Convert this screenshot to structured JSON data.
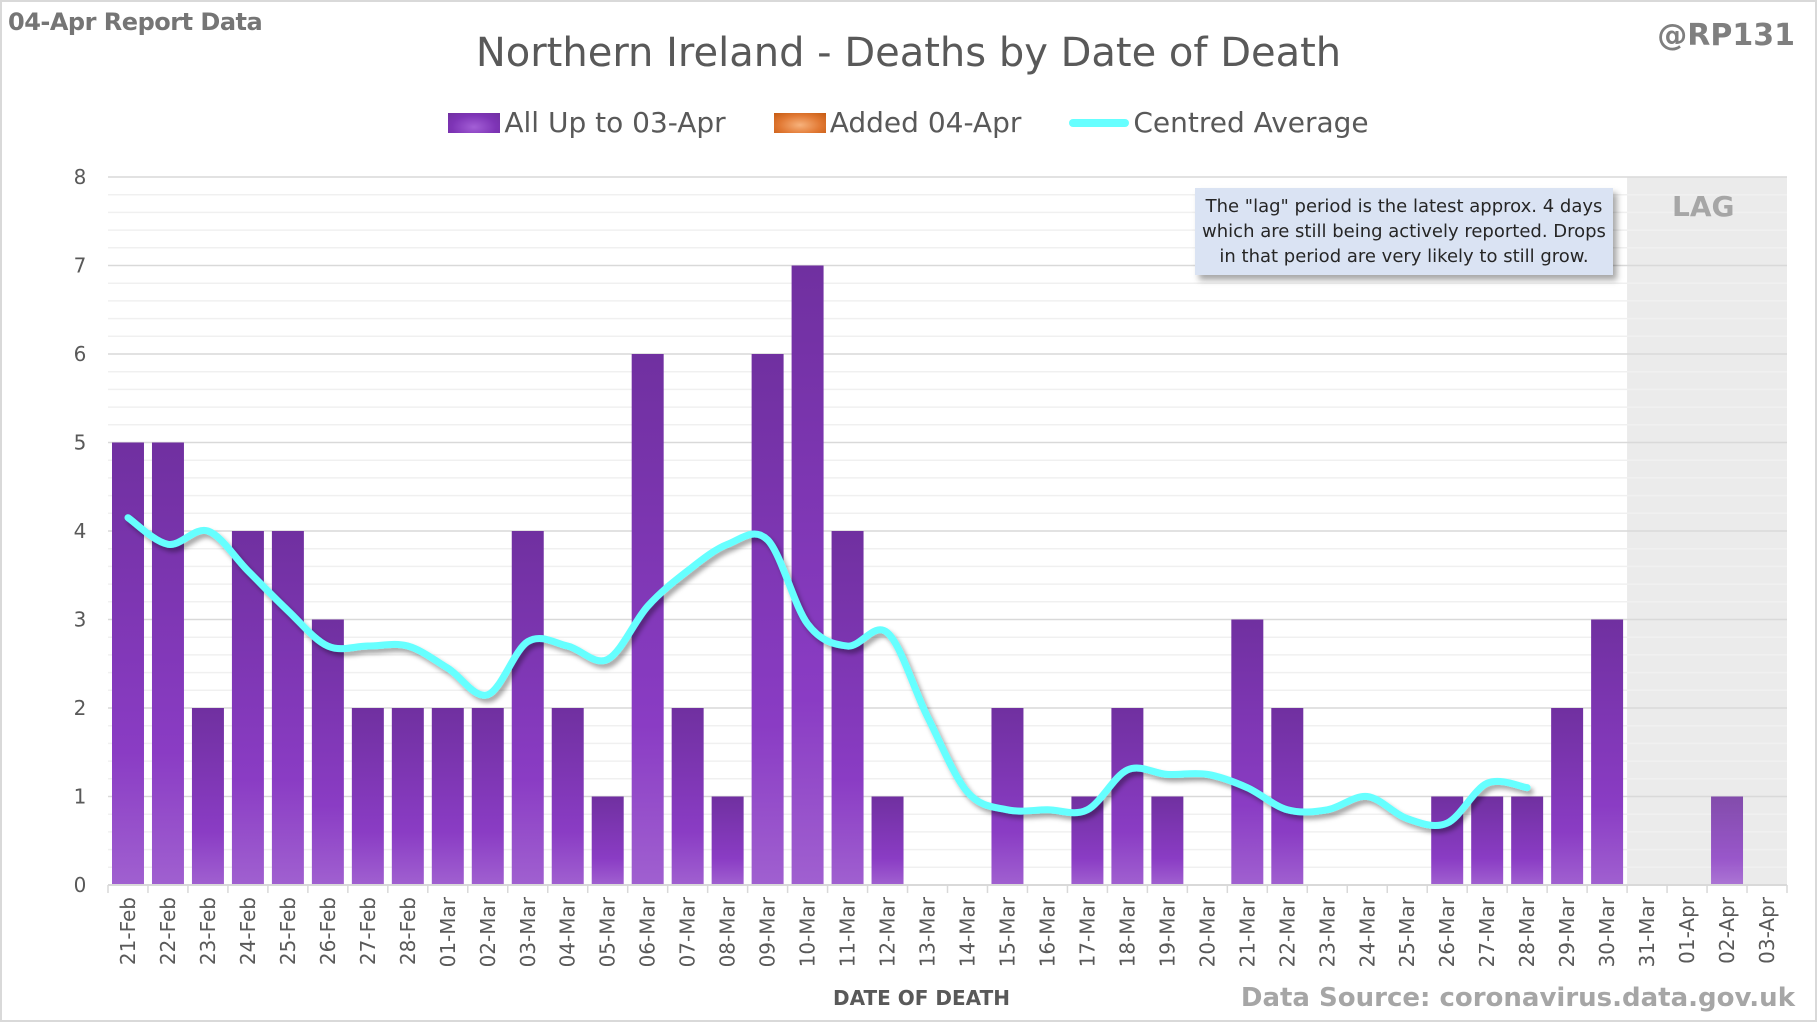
{
  "header": {
    "report_label": "04-Apr Report Data",
    "handle": "@RP131"
  },
  "colors": {
    "bars_main": "#7e34b6",
    "bars_added": "#e27a35",
    "average_line": "#66ffff",
    "lag_shade": "#ebebeb",
    "gridline_major": "#d9d9d9",
    "gridline_minor": "#f0f0f0"
  },
  "annotation": {
    "lines": [
      "The \"lag\" period is the latest approx. 4 days",
      "which are still being actively reported.  Drops",
      "in that period are very likely to still grow."
    ],
    "lag_label": "LAG"
  },
  "footer": {
    "source": "Data Source: coronavirus.data.gov.uk"
  },
  "chart_data": {
    "type": "bar",
    "title": "Northern Ireland - Deaths by Date of Death",
    "xlabel": "DATE OF DEATH",
    "ylabel": "",
    "ylim": [
      0,
      8
    ],
    "yticks": [
      0,
      1,
      2,
      3,
      4,
      5,
      6,
      7,
      8
    ],
    "minor_grid_step": 0.2,
    "grid": true,
    "legend_position": "top-center",
    "legend": [
      "All Up to 03-Apr",
      "Added 04-Apr",
      "Centred Average"
    ],
    "lag_region": {
      "from": "31-Mar",
      "to": "03-Apr",
      "label": "LAG"
    },
    "categories": [
      "21-Feb",
      "22-Feb",
      "23-Feb",
      "24-Feb",
      "25-Feb",
      "26-Feb",
      "27-Feb",
      "28-Feb",
      "01-Mar",
      "02-Mar",
      "03-Mar",
      "04-Mar",
      "05-Mar",
      "06-Mar",
      "07-Mar",
      "08-Mar",
      "09-Mar",
      "10-Mar",
      "11-Mar",
      "12-Mar",
      "13-Mar",
      "14-Mar",
      "15-Mar",
      "16-Mar",
      "17-Mar",
      "18-Mar",
      "19-Mar",
      "20-Mar",
      "21-Mar",
      "22-Mar",
      "23-Mar",
      "24-Mar",
      "25-Mar",
      "26-Mar",
      "27-Mar",
      "28-Mar",
      "29-Mar",
      "30-Mar",
      "31-Mar",
      "01-Apr",
      "02-Apr",
      "03-Apr"
    ],
    "series": [
      {
        "name": "All Up to 03-Apr",
        "kind": "bar",
        "values": [
          5,
          5,
          2,
          4,
          4,
          3,
          2,
          2,
          2,
          2,
          4,
          2,
          1,
          6,
          2,
          1,
          6,
          7,
          4,
          1,
          0,
          0,
          2,
          0,
          1,
          2,
          1,
          0,
          3,
          2,
          0,
          0,
          0,
          1,
          1,
          1,
          2,
          3,
          0,
          0,
          1,
          0
        ]
      },
      {
        "name": "Added 04-Apr",
        "kind": "bar-stacked",
        "values": [
          0,
          0,
          0,
          0,
          0,
          0,
          0,
          0,
          0,
          0,
          0,
          0,
          0,
          0,
          0,
          0,
          0,
          0,
          0,
          0,
          0,
          0,
          0,
          0,
          0,
          0,
          0,
          0,
          0,
          0,
          0,
          0,
          0,
          0,
          0,
          0,
          0,
          0,
          0,
          0,
          0,
          0
        ]
      },
      {
        "name": "Centred Average",
        "kind": "line",
        "values": [
          4.15,
          3.85,
          4.0,
          3.55,
          3.1,
          2.7,
          2.7,
          2.7,
          2.45,
          2.15,
          2.75,
          2.7,
          2.55,
          3.15,
          3.55,
          3.85,
          3.9,
          2.95,
          2.7,
          2.85,
          1.9,
          1.05,
          0.85,
          0.85,
          0.85,
          1.3,
          1.25,
          1.25,
          1.1,
          0.85,
          0.85,
          1.0,
          0.75,
          0.7,
          1.15,
          1.1,
          null,
          null,
          null,
          null,
          null,
          null
        ]
      }
    ]
  }
}
